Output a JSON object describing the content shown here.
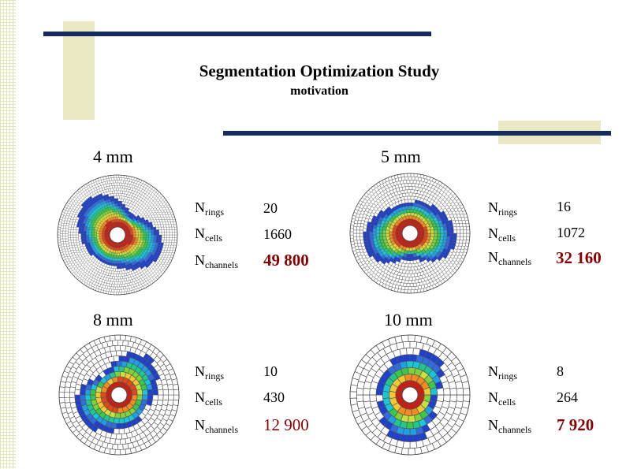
{
  "title": "Segmentation Optimization Study",
  "subtitle": "motivation",
  "labels": {
    "rings_main": "N",
    "rings_sub": "rings",
    "cells_main": "N",
    "cells_sub": "cells",
    "channels_main": "N",
    "channels_sub": "channels"
  },
  "panels": [
    {
      "size": "4 mm",
      "rings": "20",
      "cells": "1660",
      "channels": "49 800"
    },
    {
      "size": "5 mm",
      "rings": "16",
      "cells": "1072",
      "channels": "32 160"
    },
    {
      "size": "8 mm",
      "rings": "10",
      "cells": "430",
      "channels": "12 900"
    },
    {
      "size": "10 mm",
      "rings": "8",
      "cells": "264",
      "channels": "7 920"
    }
  ],
  "colors": {
    "rule": "#162c5e",
    "accent_block": "#ebe8c4",
    "channel_value": "#8b0000"
  }
}
